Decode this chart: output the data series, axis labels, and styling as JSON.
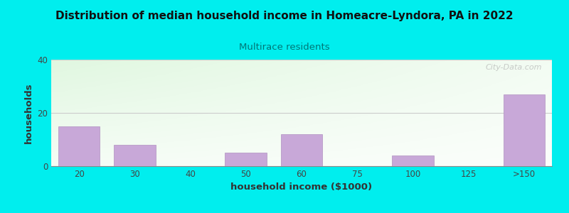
{
  "title": "Distribution of median household income in Homeacre-Lyndora, PA in 2022",
  "subtitle": "Multirace residents",
  "xlabel": "household income ($1000)",
  "ylabel": "households",
  "background_outer": "#00EEEE",
  "bar_color": "#c8a8d8",
  "bar_edge_color": "#b090c0",
  "grid_color": "#cccccc",
  "title_color": "#111111",
  "subtitle_color": "#007777",
  "axis_label_color": "#333333",
  "tick_label_color": "#444444",
  "categories": [
    "20",
    "30",
    "40",
    "50",
    "60",
    "75",
    "100",
    "125",
    ">150"
  ],
  "values": [
    15,
    8,
    0,
    5,
    12,
    0,
    4,
    0,
    27
  ],
  "ylim": [
    0,
    40
  ],
  "yticks": [
    0,
    20,
    40
  ],
  "watermark": "City-Data.com"
}
